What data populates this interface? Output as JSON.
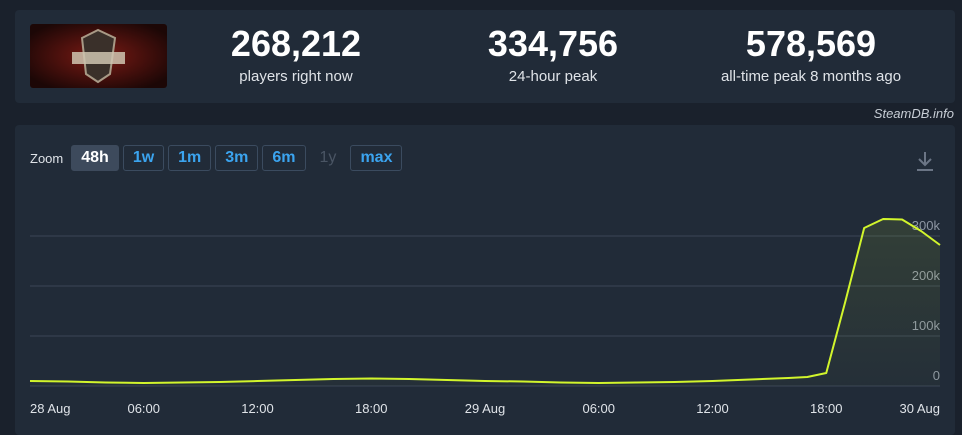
{
  "stats": [
    {
      "value": "268,212",
      "label": "players right now"
    },
    {
      "value": "334,756",
      "label": "24-hour peak"
    },
    {
      "value": "578,569",
      "label": "all-time peak 8 months ago"
    }
  ],
  "source": "SteamDB.info",
  "zoom": {
    "label": "Zoom",
    "options": [
      "48h",
      "1w",
      "1m",
      "3m",
      "6m",
      "1y",
      "max"
    ],
    "active_index": 0,
    "disabled_indices": [
      5
    ]
  },
  "chart_data": {
    "type": "area-line",
    "x": [
      0,
      2,
      4,
      6,
      8,
      10,
      12,
      14,
      16,
      18,
      20,
      22,
      24,
      26,
      28,
      30,
      32,
      34,
      36,
      38,
      40,
      41,
      42,
      43,
      44,
      45,
      46,
      47,
      48
    ],
    "values": [
      10000,
      9000,
      7000,
      6000,
      7000,
      8000,
      10000,
      12000,
      14000,
      15000,
      14000,
      12000,
      10000,
      9000,
      7000,
      6000,
      7000,
      8000,
      10000,
      13000,
      16000,
      18000,
      26000,
      168000,
      316000,
      334000,
      333000,
      310000,
      282000
    ],
    "color": "#d2f52c",
    "xlim": [
      0,
      48
    ],
    "xticks": [
      {
        "value": 0,
        "label": "28 Aug"
      },
      {
        "value": 6,
        "label": "06:00"
      },
      {
        "value": 12,
        "label": "12:00"
      },
      {
        "value": 18,
        "label": "18:00"
      },
      {
        "value": 24,
        "label": "29 Aug"
      },
      {
        "value": 30,
        "label": "06:00"
      },
      {
        "value": 36,
        "label": "12:00"
      },
      {
        "value": 42,
        "label": "18:00"
      },
      {
        "value": 48,
        "label": "30 Aug"
      }
    ],
    "ylim": [
      0,
      400000
    ],
    "yticks": [
      0,
      {
        "value": 100000,
        "label": "100k"
      },
      {
        "value": 200000,
        "label": "200k"
      },
      {
        "value": 300000,
        "label": "300k"
      }
    ],
    "grid": true
  }
}
